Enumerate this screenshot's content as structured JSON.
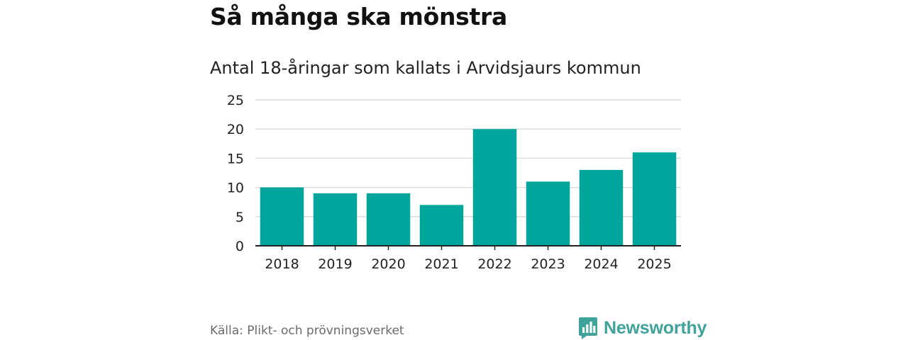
{
  "header": {
    "title": "Så många ska mönstra",
    "subtitle": "Antal 18-åringar som kallats i Arvidsjaurs kommun"
  },
  "footer": {
    "source": "Källa: Plikt- och prövningsverket",
    "brand": "Newsworthy",
    "brand_icon": "newsworthy-logo-icon"
  },
  "colors": {
    "bar": "#00a69c",
    "grid": "#dcdcdc",
    "axis": "#222222",
    "brand": "#3ea39a"
  },
  "chart_data": {
    "type": "bar",
    "title": "Så många ska mönstra",
    "subtitle": "Antal 18-åringar som kallats i Arvidsjaurs kommun",
    "xlabel": "",
    "ylabel": "",
    "categories": [
      "2018",
      "2019",
      "2020",
      "2021",
      "2022",
      "2023",
      "2024",
      "2025"
    ],
    "values": [
      10,
      9,
      9,
      7,
      20,
      11,
      13,
      16
    ],
    "ylim": [
      0,
      25
    ],
    "yticks": [
      0,
      5,
      10,
      15,
      20,
      25
    ],
    "grid": true,
    "legend": "none"
  }
}
